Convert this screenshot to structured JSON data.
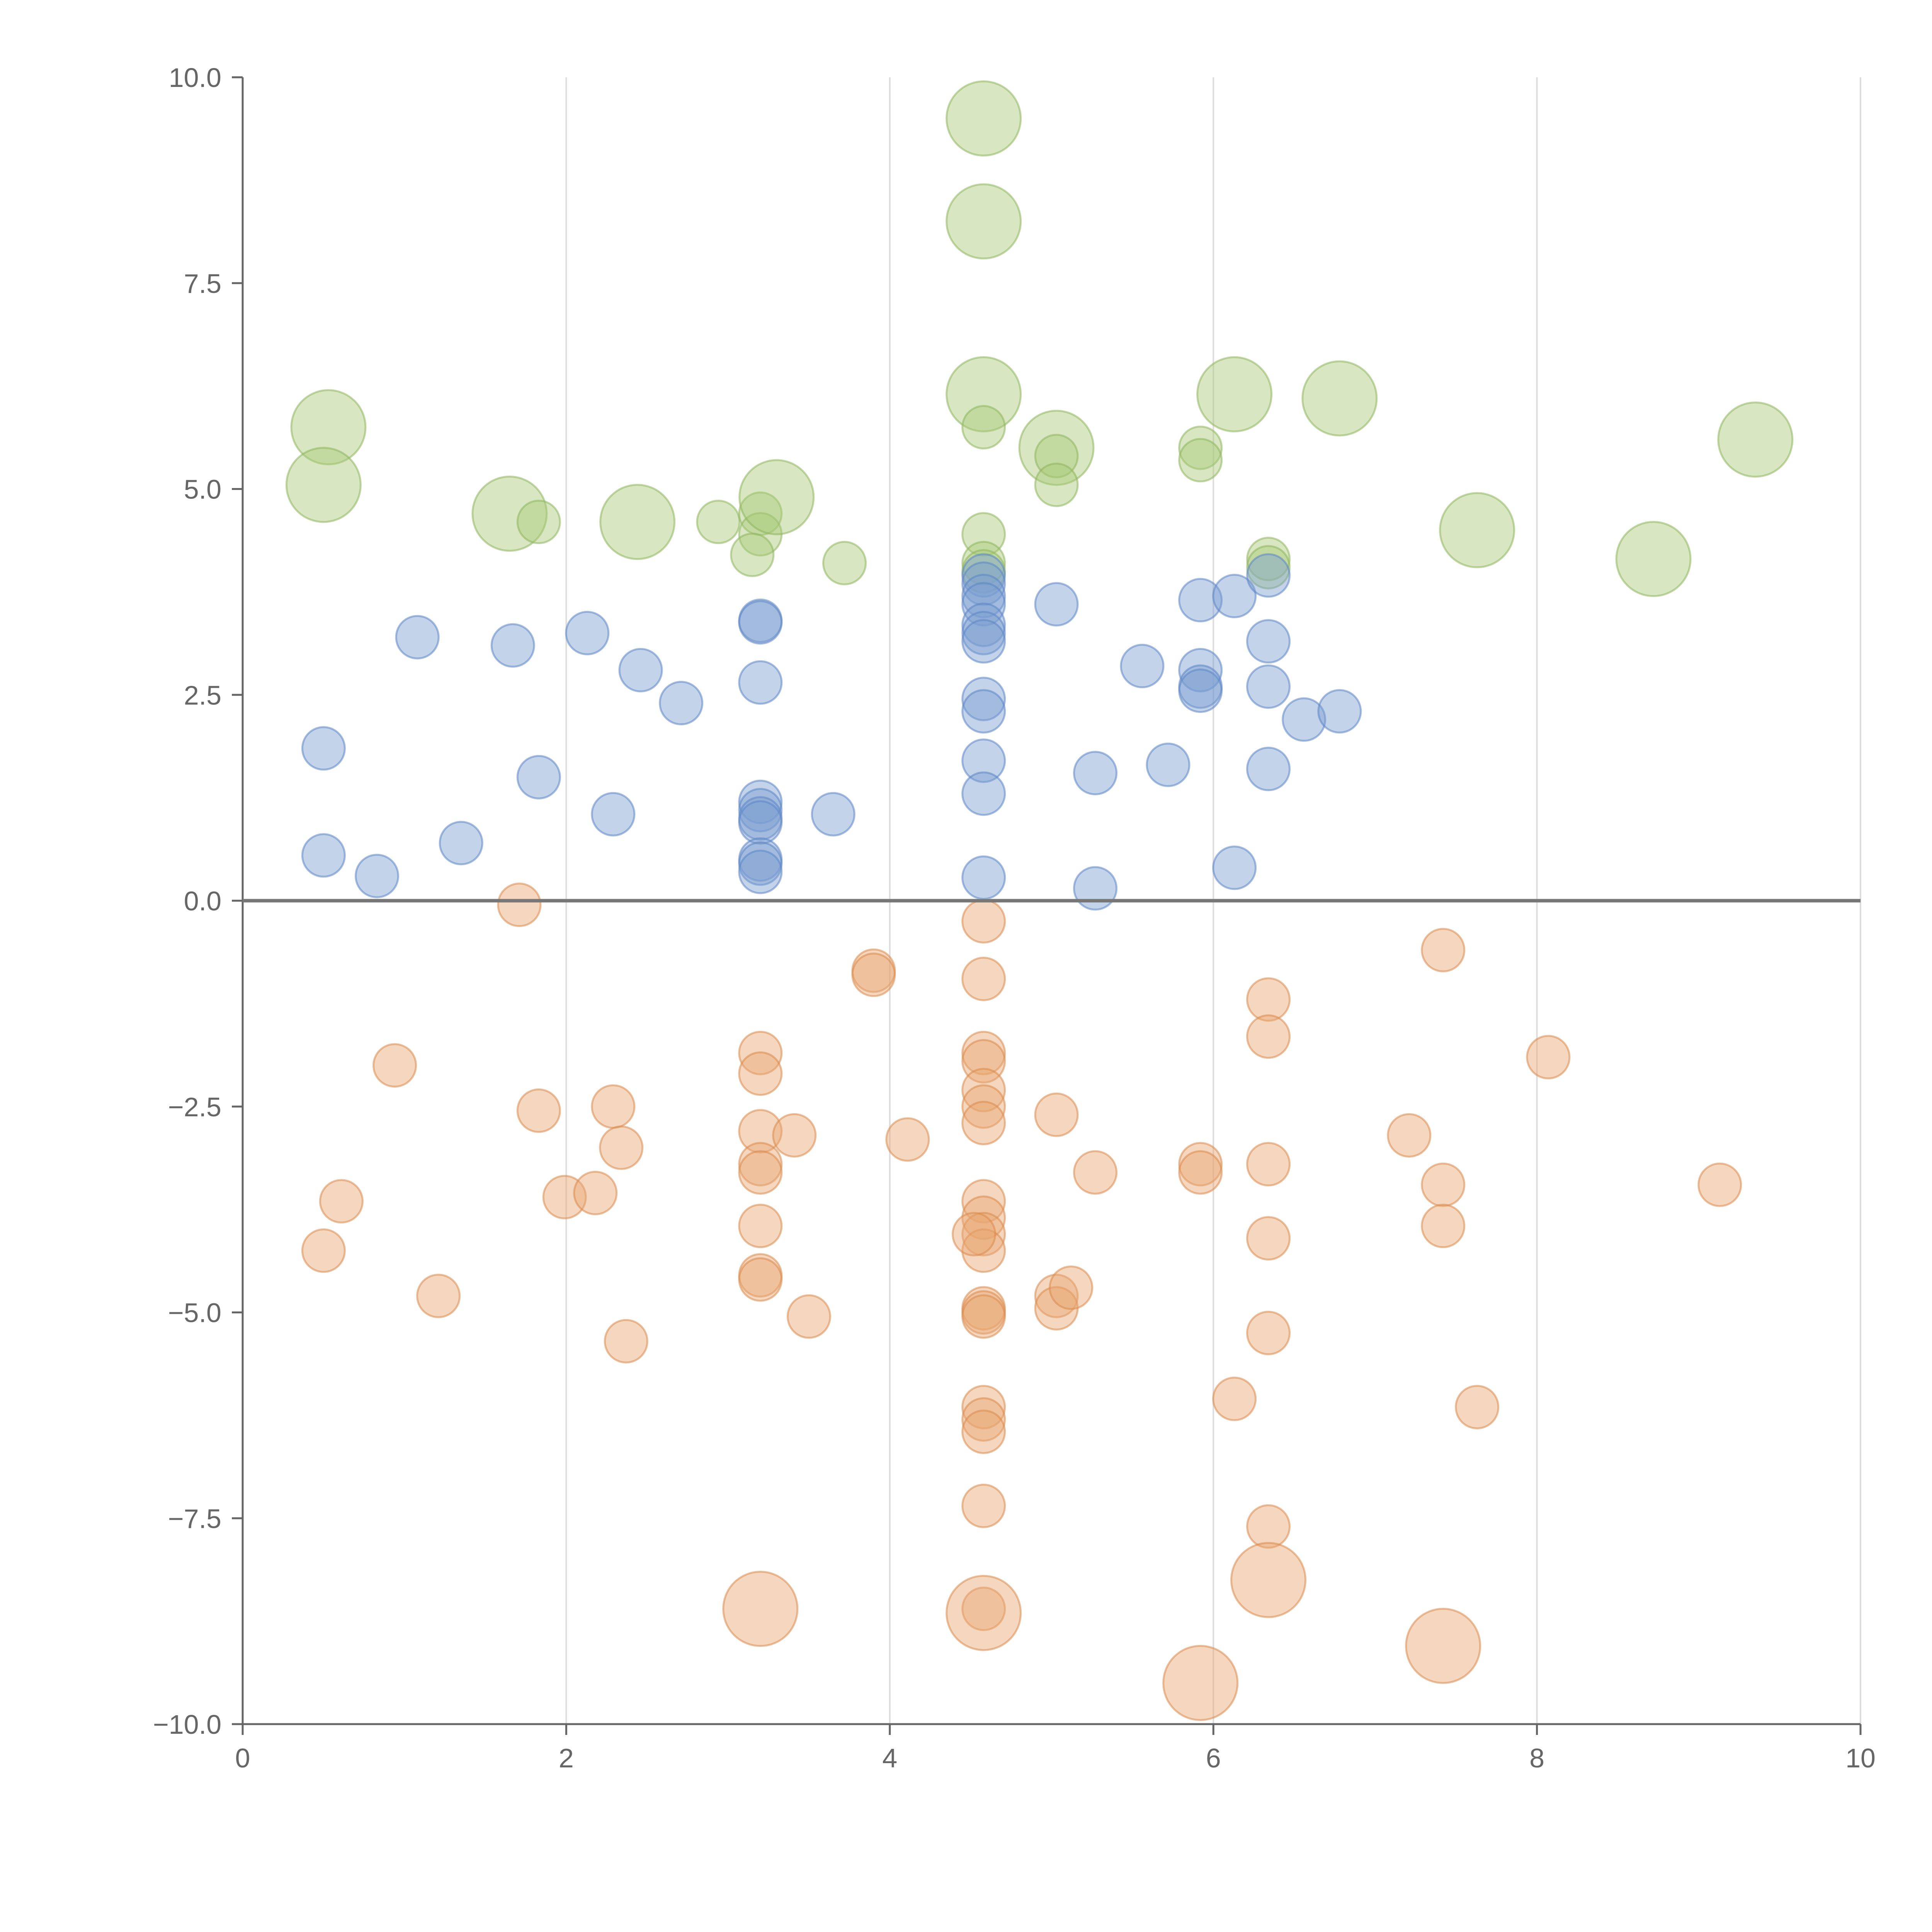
{
  "chart_data": {
    "type": "scatter",
    "title": "",
    "xlabel": "",
    "ylabel": "",
    "xlim": [
      0,
      10
    ],
    "ylim": [
      -10,
      10
    ],
    "x_ticks": [
      0,
      2,
      4,
      6,
      8,
      10
    ],
    "x_tick_labels": [
      "0",
      "2",
      "4",
      "6",
      "8",
      "10"
    ],
    "y_ticks": [
      10,
      7.5,
      5,
      2.5,
      0,
      -2.5,
      -5,
      -7.5,
      -10
    ],
    "y_tick_labels": [
      "10.0",
      "7.5",
      "5.0",
      "2.5",
      "0.0",
      "−2.5",
      "−5.0",
      "−7.5",
      "−10.0"
    ],
    "vertical_grid": true,
    "horizontal_grid": false,
    "zero_line": true,
    "series": [
      {
        "name": "green",
        "color": "#a9c978",
        "stroke": "#8fb45f",
        "points": [
          [
            4.58,
            9.5,
            2
          ],
          [
            4.58,
            8.25,
            2
          ],
          [
            4.58,
            6.15,
            2
          ],
          [
            4.58,
            5.75,
            1
          ],
          [
            0.53,
            5.75,
            2
          ],
          [
            0.5,
            5.05,
            2
          ],
          [
            1.65,
            4.7,
            2
          ],
          [
            1.83,
            4.6,
            1
          ],
          [
            2.44,
            4.6,
            2
          ],
          [
            2.94,
            4.6,
            1
          ],
          [
            3.2,
            4.7,
            1
          ],
          [
            3.2,
            4.45,
            1
          ],
          [
            3.15,
            4.2,
            1
          ],
          [
            3.3,
            4.9,
            2
          ],
          [
            3.72,
            4.1,
            1
          ],
          [
            4.58,
            4.45,
            1
          ],
          [
            4.58,
            4.1,
            1
          ],
          [
            4.58,
            4.0,
            1
          ],
          [
            5.03,
            5.5,
            2
          ],
          [
            5.03,
            5.4,
            1
          ],
          [
            5.03,
            5.05,
            1
          ],
          [
            5.92,
            5.5,
            1
          ],
          [
            5.92,
            5.35,
            1
          ],
          [
            6.13,
            6.15,
            2
          ],
          [
            6.34,
            4.15,
            1
          ],
          [
            6.34,
            4.05,
            1
          ],
          [
            6.78,
            6.1,
            2
          ],
          [
            7.63,
            4.5,
            2
          ],
          [
            8.72,
            4.15,
            2
          ],
          [
            9.35,
            5.6,
            2
          ]
        ]
      },
      {
        "name": "blue",
        "color": "#7b9dd0",
        "stroke": "#5d85c4",
        "points": [
          [
            0.5,
            1.85,
            1
          ],
          [
            0.5,
            0.55,
            1
          ],
          [
            0.83,
            0.3,
            1
          ],
          [
            1.08,
            3.2,
            1
          ],
          [
            1.35,
            0.7,
            1
          ],
          [
            1.67,
            3.1,
            1
          ],
          [
            1.83,
            1.5,
            1
          ],
          [
            2.13,
            3.25,
            1
          ],
          [
            2.29,
            1.05,
            1
          ],
          [
            2.46,
            2.8,
            1
          ],
          [
            2.71,
            2.4,
            1
          ],
          [
            3.2,
            3.4,
            1
          ],
          [
            3.2,
            3.38,
            1
          ],
          [
            3.2,
            2.65,
            1
          ],
          [
            3.2,
            1.2,
            1
          ],
          [
            3.2,
            1.1,
            1
          ],
          [
            3.2,
            1.0,
            1
          ],
          [
            3.2,
            0.95,
            1
          ],
          [
            3.2,
            0.5,
            1
          ],
          [
            3.2,
            0.45,
            1
          ],
          [
            3.2,
            0.35,
            1
          ],
          [
            3.65,
            1.05,
            1
          ],
          [
            4.58,
            3.95,
            1
          ],
          [
            4.58,
            3.85,
            1
          ],
          [
            4.58,
            3.7,
            1
          ],
          [
            4.58,
            3.6,
            1
          ],
          [
            4.58,
            3.35,
            1
          ],
          [
            4.58,
            3.25,
            1
          ],
          [
            4.58,
            3.15,
            1
          ],
          [
            4.58,
            2.45,
            1
          ],
          [
            4.58,
            2.3,
            1
          ],
          [
            4.58,
            1.7,
            1
          ],
          [
            4.58,
            1.3,
            1
          ],
          [
            4.58,
            0.28,
            1
          ],
          [
            5.03,
            3.6,
            1
          ],
          [
            5.27,
            1.55,
            1
          ],
          [
            5.27,
            0.15,
            1
          ],
          [
            5.56,
            2.85,
            1
          ],
          [
            5.72,
            1.65,
            1
          ],
          [
            5.92,
            3.65,
            1
          ],
          [
            5.92,
            2.8,
            1
          ],
          [
            5.92,
            2.6,
            1
          ],
          [
            5.92,
            2.55,
            1
          ],
          [
            6.13,
            3.7,
            1
          ],
          [
            6.13,
            0.4,
            1
          ],
          [
            6.34,
            3.95,
            1
          ],
          [
            6.34,
            3.15,
            1
          ],
          [
            6.34,
            2.6,
            1
          ],
          [
            6.34,
            1.6,
            1
          ],
          [
            6.56,
            2.2,
            1
          ],
          [
            6.78,
            2.3,
            1
          ]
        ]
      },
      {
        "name": "orange",
        "color": "#e8a670",
        "stroke": "#d98a4e",
        "points": [
          [
            1.71,
            -0.05,
            1
          ],
          [
            0.94,
            -2.0,
            1
          ],
          [
            0.61,
            -3.65,
            1
          ],
          [
            0.5,
            -4.25,
            1
          ],
          [
            1.21,
            -4.8,
            1
          ],
          [
            1.83,
            -2.55,
            1
          ],
          [
            1.99,
            -3.6,
            1
          ],
          [
            2.18,
            -3.55,
            1
          ],
          [
            2.29,
            -2.5,
            1
          ],
          [
            2.34,
            -3.0,
            1
          ],
          [
            2.37,
            -5.35,
            1
          ],
          [
            3.2,
            -1.85,
            1
          ],
          [
            3.2,
            -2.1,
            1
          ],
          [
            3.2,
            -2.8,
            1
          ],
          [
            3.2,
            -3.2,
            1
          ],
          [
            3.2,
            -3.3,
            1
          ],
          [
            3.2,
            -3.95,
            1
          ],
          [
            3.2,
            -4.55,
            1
          ],
          [
            3.2,
            -4.6,
            1
          ],
          [
            3.41,
            -2.85,
            1
          ],
          [
            3.5,
            -5.05,
            1
          ],
          [
            3.9,
            -0.85,
            1
          ],
          [
            3.9,
            -0.9,
            1
          ],
          [
            4.11,
            -2.9,
            1
          ],
          [
            4.58,
            -0.25,
            1
          ],
          [
            4.58,
            -0.95,
            1
          ],
          [
            4.58,
            -1.85,
            1
          ],
          [
            4.58,
            -1.95,
            1
          ],
          [
            4.58,
            -2.3,
            1
          ],
          [
            4.58,
            -2.5,
            1
          ],
          [
            4.58,
            -2.7,
            1
          ],
          [
            4.58,
            -3.65,
            1
          ],
          [
            4.58,
            -3.85,
            1
          ],
          [
            4.58,
            -4.05,
            1
          ],
          [
            4.58,
            -4.25,
            1
          ],
          [
            4.52,
            -4.05,
            1
          ],
          [
            4.58,
            -4.95,
            1
          ],
          [
            4.58,
            -5.0,
            1
          ],
          [
            4.58,
            -5.05,
            1
          ],
          [
            4.58,
            -6.15,
            1
          ],
          [
            4.58,
            -6.3,
            1
          ],
          [
            4.58,
            -6.45,
            1
          ],
          [
            4.58,
            -7.35,
            1
          ],
          [
            4.58,
            -8.6,
            1
          ],
          [
            4.58,
            -8.65,
            2
          ],
          [
            3.2,
            -8.6,
            2
          ],
          [
            5.03,
            -2.6,
            1
          ],
          [
            5.03,
            -4.8,
            1
          ],
          [
            5.03,
            -4.95,
            1
          ],
          [
            5.12,
            -4.7,
            1
          ],
          [
            5.27,
            -3.3,
            1
          ],
          [
            5.92,
            -3.2,
            1
          ],
          [
            5.92,
            -3.3,
            1
          ],
          [
            5.92,
            -9.5,
            2
          ],
          [
            6.13,
            -6.05,
            1
          ],
          [
            6.34,
            -1.2,
            1
          ],
          [
            6.34,
            -1.65,
            1
          ],
          [
            6.34,
            -3.2,
            1
          ],
          [
            6.34,
            -4.1,
            1
          ],
          [
            6.34,
            -5.25,
            1
          ],
          [
            6.34,
            -7.6,
            1
          ],
          [
            6.34,
            -8.25,
            2
          ],
          [
            7.21,
            -2.85,
            1
          ],
          [
            7.42,
            -0.6,
            1
          ],
          [
            7.42,
            -3.45,
            1
          ],
          [
            7.42,
            -3.95,
            1
          ],
          [
            7.42,
            -9.05,
            2
          ],
          [
            7.63,
            -6.15,
            1
          ],
          [
            8.07,
            -1.9,
            1
          ],
          [
            9.13,
            -3.45,
            1
          ]
        ]
      }
    ]
  }
}
